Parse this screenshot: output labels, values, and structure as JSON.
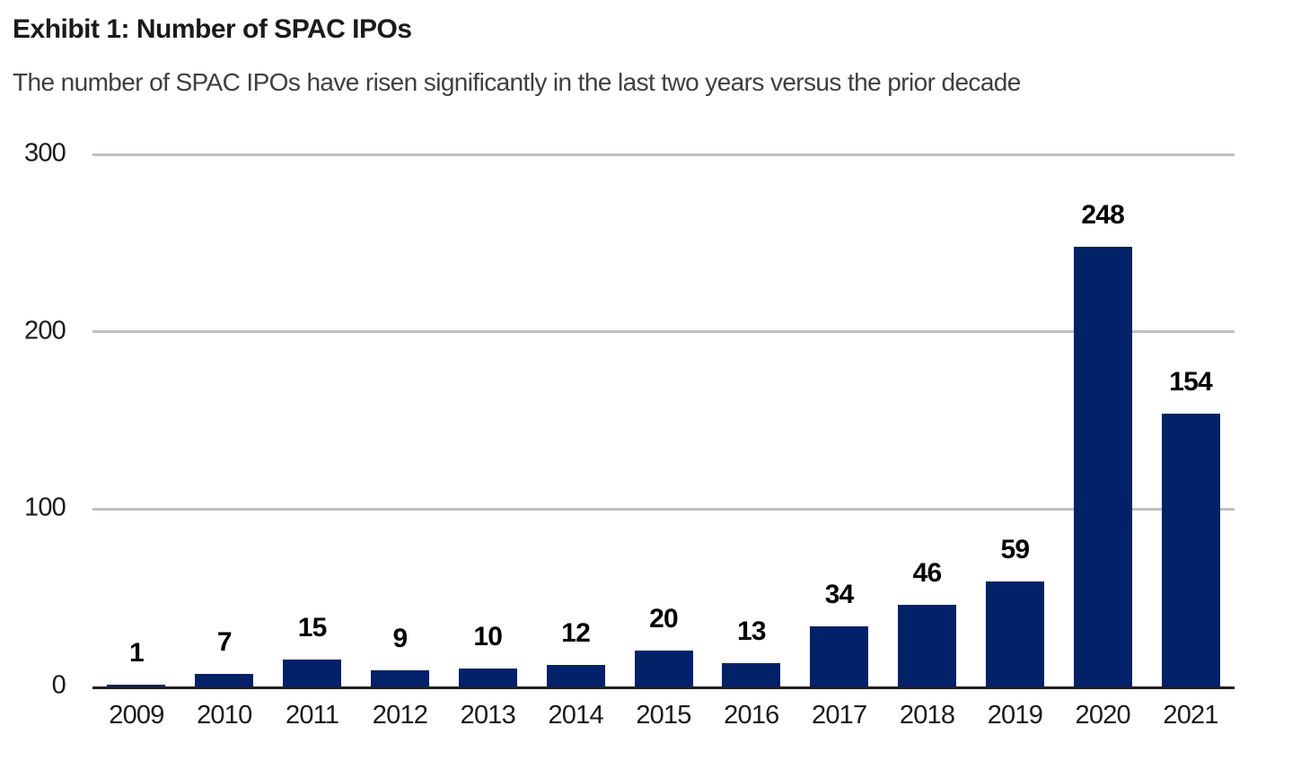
{
  "page": {
    "title": "Exhibit 1: Number of SPAC IPOs",
    "subtitle": "The number of SPAC IPOs have risen significantly in the last two years versus the prior decade"
  },
  "chart_data": {
    "type": "bar",
    "title": "Exhibit 1: Number of SPAC IPOs",
    "subtitle": "The number of SPAC IPOs have risen significantly in the last two years versus the prior decade",
    "categories": [
      "2009",
      "2010",
      "2011",
      "2012",
      "2013",
      "2014",
      "2015",
      "2016",
      "2017",
      "2018",
      "2019",
      "2020",
      "2021"
    ],
    "values": [
      1,
      7,
      15,
      9,
      10,
      12,
      20,
      13,
      34,
      46,
      59,
      248,
      154
    ],
    "data_labels": [
      "1",
      "7",
      "15",
      "9",
      "10",
      "12",
      "20",
      "13",
      "34",
      "46",
      "59",
      "248",
      "154"
    ],
    "xlabel": "",
    "ylabel": "",
    "ylim": [
      0,
      300
    ],
    "yticks": [
      0,
      100,
      200,
      300
    ],
    "ytick_labels": [
      "0",
      "100",
      "200",
      "300"
    ],
    "grid": "horizontal",
    "legend": "none",
    "colors": {
      "bar": "#012169",
      "gridline": "#bfbfbf",
      "axis_line": "#1f1f1f",
      "title_text": "#1a1a1a",
      "subtitle_text": "#3f3f3f",
      "data_label_text": "#000000"
    }
  }
}
